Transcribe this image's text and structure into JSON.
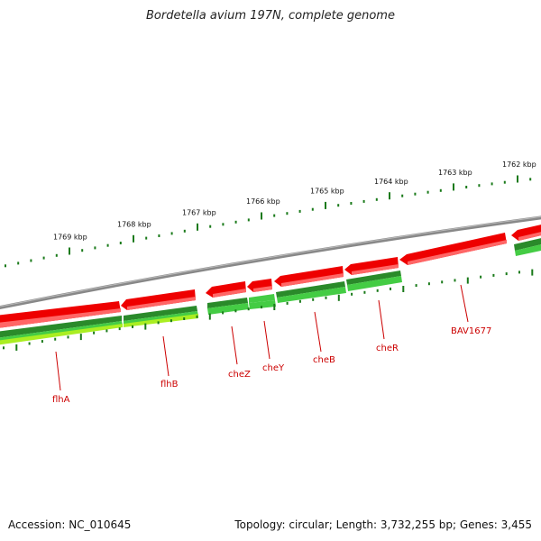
{
  "title": "Bordetella avium 197N, complete genome",
  "ticks": [
    {
      "label": "1769 kbp"
    },
    {
      "label": "1768 kbp"
    },
    {
      "label": "1767 kbp"
    },
    {
      "label": "1766 kbp"
    },
    {
      "label": "1765 kbp"
    },
    {
      "label": "1764 kbp"
    },
    {
      "label": "1763 kbp"
    },
    {
      "label": "1762 kbp"
    }
  ],
  "genes": [
    {
      "label": "flhA"
    },
    {
      "label": "flhB"
    },
    {
      "label": "cheZ"
    },
    {
      "label": "cheY"
    },
    {
      "label": "cheB"
    },
    {
      "label": "cheR"
    },
    {
      "label": "BAV1677"
    }
  ],
  "colors": {
    "backbone": "#888888",
    "gene_red": "#ee0000",
    "gene_red_light": "#ff6666",
    "green_dark": "#2a8a2a",
    "green_light": "#44cc44",
    "yellow_green": "#aaee22",
    "tick_green": "#1a7a1a",
    "label_red": "#cc0000"
  },
  "footer": {
    "accession": "Accession: NC_010645",
    "summary": "Topology: circular; Length: 3,732,255 bp; Genes: 3,455"
  }
}
